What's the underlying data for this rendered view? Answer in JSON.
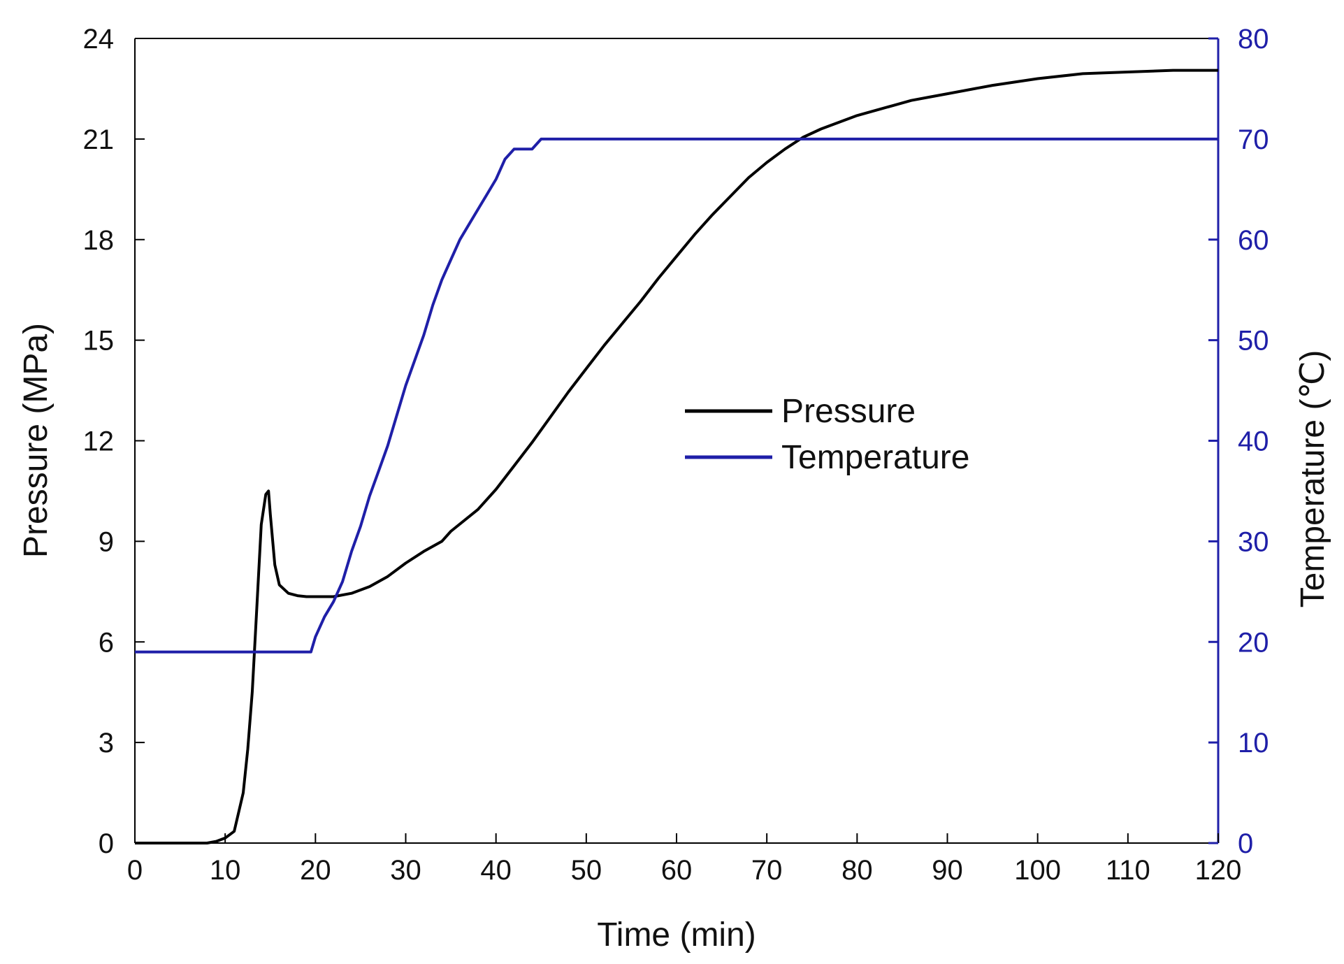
{
  "chart_data": {
    "type": "line",
    "title": "",
    "xlabel": "Time (min)",
    "ylabel_left": "Pressure (MPa)",
    "ylabel_right": "Temperature (℃)",
    "xlim": [
      0,
      120
    ],
    "ylim_left": [
      0,
      24
    ],
    "ylim_right": [
      0,
      80
    ],
    "x_ticks": [
      0,
      10,
      20,
      30,
      40,
      50,
      60,
      70,
      80,
      90,
      100,
      110,
      120
    ],
    "x_tick_labels": [
      "0",
      "10",
      "20",
      "30",
      "40",
      "50",
      "60",
      "70",
      "80",
      "90",
      "100",
      "110",
      "120"
    ],
    "y_left_ticks": [
      0,
      3,
      6,
      9,
      12,
      15,
      18,
      21,
      24
    ],
    "y_left_tick_labels": [
      "0",
      "3",
      "6",
      "9",
      "12",
      "15",
      "18",
      "21",
      "24"
    ],
    "y_right_ticks": [
      0,
      10,
      20,
      30,
      40,
      50,
      60,
      70,
      80
    ],
    "y_right_tick_labels": [
      "0",
      "10",
      "20",
      "30",
      "40",
      "50",
      "60",
      "70",
      "80"
    ],
    "grid": false,
    "legend_position": "center",
    "colors": {
      "pressure": "#000000",
      "temperature": "#1f1fa8",
      "right_axis": "#1f1fa8",
      "frame": "#000000"
    },
    "series": [
      {
        "name": "Pressure",
        "axis": "left",
        "x": [
          0,
          8,
          9,
          10,
          11,
          12,
          12.5,
          13,
          13.5,
          14,
          14.5,
          14.8,
          15,
          15.5,
          16,
          17,
          18,
          19,
          20,
          22,
          24,
          26,
          28,
          30,
          32,
          34,
          35,
          38,
          40,
          42,
          44,
          46,
          48,
          50,
          52,
          54,
          56,
          58,
          60,
          62,
          64,
          66,
          68,
          70,
          72,
          74,
          76,
          78,
          80,
          82,
          84,
          86,
          88,
          90,
          95,
          100,
          105,
          110,
          115,
          120
        ],
        "y": [
          0,
          0,
          0.05,
          0.15,
          0.35,
          1.5,
          2.8,
          4.5,
          7.0,
          9.5,
          10.4,
          10.5,
          9.8,
          8.3,
          7.7,
          7.45,
          7.38,
          7.35,
          7.35,
          7.35,
          7.45,
          7.65,
          7.95,
          8.35,
          8.7,
          9.0,
          9.3,
          9.95,
          10.55,
          11.25,
          11.95,
          12.7,
          13.45,
          14.15,
          14.85,
          15.5,
          16.15,
          16.85,
          17.5,
          18.15,
          18.75,
          19.3,
          19.85,
          20.3,
          20.7,
          21.05,
          21.3,
          21.5,
          21.7,
          21.85,
          22.0,
          22.15,
          22.25,
          22.35,
          22.6,
          22.8,
          22.95,
          23.0,
          23.05,
          23.05
        ]
      },
      {
        "name": "Temperature",
        "axis": "right",
        "x": [
          0,
          19.5,
          20,
          21,
          22,
          23,
          24,
          25,
          26,
          27,
          28,
          29,
          30,
          31,
          32,
          33,
          34,
          35,
          36,
          37,
          38,
          39,
          40,
          41,
          42,
          43,
          44,
          45,
          46,
          50,
          60,
          70,
          80,
          90,
          100,
          110,
          120
        ],
        "y": [
          19,
          19,
          20.5,
          22.5,
          24,
          26,
          29,
          31.5,
          34.5,
          37,
          39.5,
          42.5,
          45.5,
          48,
          50.5,
          53.5,
          56,
          58,
          60,
          61.5,
          63,
          64.5,
          66,
          68,
          69,
          69,
          69,
          70,
          70,
          70,
          70,
          70,
          70,
          70,
          70,
          70,
          70
        ]
      }
    ]
  }
}
